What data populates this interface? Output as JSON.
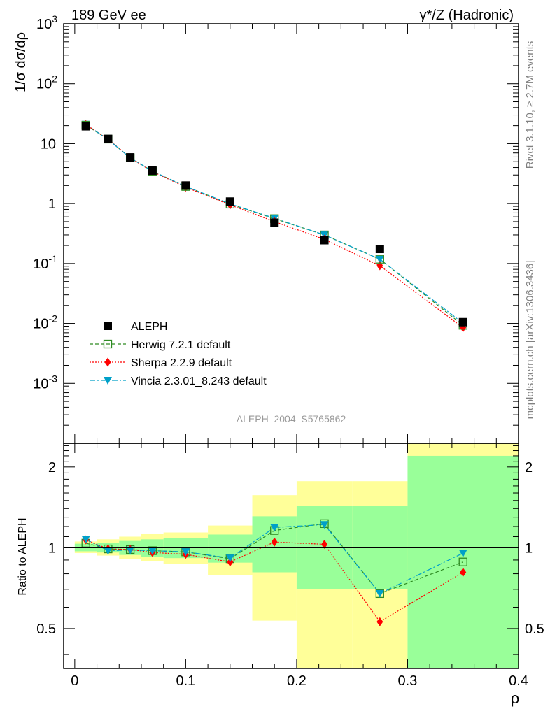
{
  "header": {
    "left": "189 GeV ee",
    "right": "γ*/Z (Hadronic)"
  },
  "side_text": {
    "rivet": "Rivet 3.1.10, ≥ 2.7M events",
    "mcplots": "mcplots.cern.ch [arXiv:1306.3436]"
  },
  "analysis_label": "ALEPH_2004_S5765862",
  "chart_data": [
    {
      "type": "scatter",
      "panel": "main",
      "ylabel": "1/σ dσ/dρ",
      "yscale": "log",
      "ylim": [
        0.0001,
        1000
      ],
      "xlim": [
        -0.01,
        0.4
      ],
      "yticks": [
        "10^-3",
        "10^-2",
        "10^-1",
        "1",
        "10",
        "10^2",
        "10^3"
      ],
      "legend_position": "lower-left",
      "series": [
        {
          "name": "ALEPH",
          "color": "#000000",
          "marker": "square",
          "x": [
            0.01,
            0.03,
            0.05,
            0.07,
            0.1,
            0.14,
            0.18,
            0.225,
            0.275,
            0.35
          ],
          "y": [
            19.5,
            12.0,
            5.9,
            3.55,
            2.0,
            1.08,
            0.48,
            0.245,
            0.175,
            0.0105
          ]
        },
        {
          "name": "Herwig 7.2.1 default",
          "color": "#2e8b22",
          "marker": "open-square",
          "dash": "5,3",
          "x": [
            0.01,
            0.03,
            0.05,
            0.07,
            0.1,
            0.14,
            0.18,
            0.225,
            0.275,
            0.35
          ],
          "y": [
            20.3,
            11.9,
            5.8,
            3.47,
            1.93,
            0.98,
            0.56,
            0.3,
            0.118,
            0.0093
          ]
        },
        {
          "name": "Sherpa 2.2.9 default",
          "color": "#ff0000",
          "marker": "diamond",
          "dash": "2,2",
          "x": [
            0.01,
            0.03,
            0.05,
            0.07,
            0.1,
            0.14,
            0.18,
            0.225,
            0.275,
            0.35
          ],
          "y": [
            20.8,
            11.9,
            5.8,
            3.41,
            1.88,
            0.95,
            0.5,
            0.253,
            0.092,
            0.0085
          ]
        },
        {
          "name": "Vincia 2.3.01_8.243 default",
          "color": "#00a0c8",
          "marker": "triangle-down",
          "dash": "8,3,2,3",
          "x": [
            0.01,
            0.03,
            0.05,
            0.07,
            0.1,
            0.14,
            0.18,
            0.225,
            0.275,
            0.35
          ],
          "y": [
            21.0,
            11.7,
            5.8,
            3.48,
            1.93,
            0.99,
            0.57,
            0.3,
            0.118,
            0.0101
          ]
        }
      ]
    },
    {
      "type": "scatter",
      "panel": "ratio",
      "ylabel": "Ratio to ALEPH",
      "xlabel": "ρ",
      "yscale": "log",
      "ylim": [
        0.355,
        2.45
      ],
      "xlim": [
        -0.01,
        0.4
      ],
      "xticks": [
        0,
        0.1,
        0.2,
        0.3,
        0.4
      ],
      "xtick_labels": [
        "0",
        "0.1",
        "0.2",
        "0.3",
        "0.4"
      ],
      "yticks": [
        0.5,
        1,
        2
      ],
      "ytick_labels": [
        "0.5",
        "1",
        "2"
      ],
      "bands": {
        "bins": [
          [
            0.0,
            0.02
          ],
          [
            0.02,
            0.04
          ],
          [
            0.04,
            0.06
          ],
          [
            0.06,
            0.08
          ],
          [
            0.08,
            0.12
          ],
          [
            0.12,
            0.16
          ],
          [
            0.16,
            0.2
          ],
          [
            0.2,
            0.25
          ],
          [
            0.25,
            0.3
          ],
          [
            0.3,
            0.4
          ]
        ],
        "inner": [
          [
            0.97,
            1.035
          ],
          [
            0.96,
            1.045
          ],
          [
            0.94,
            1.06
          ],
          [
            0.925,
            1.075
          ],
          [
            0.915,
            1.085
          ],
          [
            0.88,
            1.12
          ],
          [
            0.81,
            1.31
          ],
          [
            0.7,
            1.43
          ],
          [
            0.7,
            1.43
          ],
          [
            0.35,
            2.2
          ]
        ],
        "outer": [
          [
            0.955,
            1.055
          ],
          [
            0.935,
            1.075
          ],
          [
            0.91,
            1.1
          ],
          [
            0.89,
            1.13
          ],
          [
            0.87,
            1.14
          ],
          [
            0.79,
            1.21
          ],
          [
            0.535,
            1.57
          ],
          [
            0.35,
            1.77
          ],
          [
            0.35,
            1.77
          ],
          [
            0.35,
            2.45
          ]
        ],
        "inner_color": "#99ff99",
        "outer_color": "#ffff99"
      },
      "series": [
        {
          "name": "Herwig 7.2.1 default",
          "color": "#2e8b22",
          "marker": "open-square",
          "dash": "5,3",
          "x": [
            0.01,
            0.03,
            0.05,
            0.07,
            0.1,
            0.14,
            0.18,
            0.225,
            0.275,
            0.35
          ],
          "y": [
            1.04,
            0.99,
            0.985,
            0.975,
            0.965,
            0.91,
            1.16,
            1.23,
            0.675,
            0.885
          ]
        },
        {
          "name": "Sherpa 2.2.9 default",
          "color": "#ff0000",
          "marker": "diamond",
          "dash": "2,2",
          "x": [
            0.01,
            0.03,
            0.05,
            0.07,
            0.1,
            0.14,
            0.18,
            0.225,
            0.275,
            0.35
          ],
          "y": [
            1.07,
            0.99,
            0.985,
            0.96,
            0.945,
            0.885,
            1.05,
            1.03,
            0.53,
            0.81
          ]
        },
        {
          "name": "Vincia 2.3.01_8.243 default",
          "color": "#00a0c8",
          "marker": "triangle-down",
          "dash": "8,3,2,3",
          "x": [
            0.01,
            0.03,
            0.05,
            0.07,
            0.1,
            0.14,
            0.18,
            0.225,
            0.275,
            0.35
          ],
          "y": [
            1.075,
            0.975,
            0.98,
            0.975,
            0.965,
            0.915,
            1.19,
            1.22,
            0.675,
            0.955
          ]
        }
      ]
    }
  ]
}
